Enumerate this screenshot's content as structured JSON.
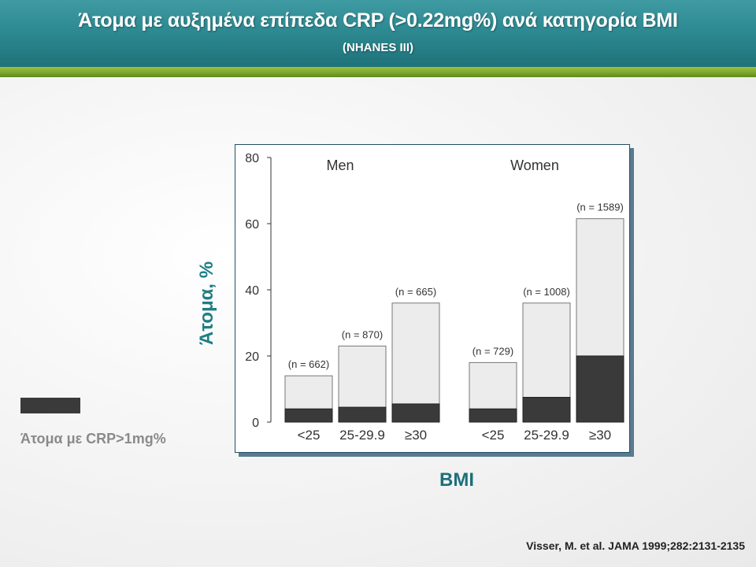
{
  "slide": {
    "title": "Άτομα με αυξημένα επίπεδα CRP (>0.22mg%) ανά κατηγορία BMI",
    "subtitle": "(NHANES III)",
    "legend_label": "Άτομα με CRP>1mg%",
    "citation": "Visser, M. et al. JAMA 1999;282:2131-2135",
    "colors": {
      "header": "#2e8a92",
      "accent_bar": "#7aa528",
      "axis_title": "#1e7e85",
      "bar_light": "#ececec",
      "bar_dark": "#3a3a3a"
    }
  },
  "chart_data": {
    "type": "bar",
    "xlabel": "BMI",
    "ylabel": "Άτομα, %",
    "ylim": [
      0,
      80
    ],
    "yticks": [
      0,
      20,
      40,
      60,
      80
    ],
    "grid": false,
    "groups": [
      {
        "label": "Men",
        "categories": [
          "<25",
          "25-29.9",
          "≥30"
        ],
        "n_labels": [
          "(n = 662)",
          "(n = 870)",
          "(n = 665)"
        ],
        "total": [
          14,
          23,
          36
        ],
        "crp_over_1": [
          4,
          4.5,
          5.5
        ]
      },
      {
        "label": "Women",
        "categories": [
          "<25",
          "25-29.9",
          "≥30"
        ],
        "n_labels": [
          "(n = 729)",
          "(n = 1008)",
          "(n = 1589)"
        ],
        "total": [
          18,
          36,
          61.5
        ],
        "crp_over_1": [
          4,
          7.5,
          20
        ]
      }
    ]
  }
}
